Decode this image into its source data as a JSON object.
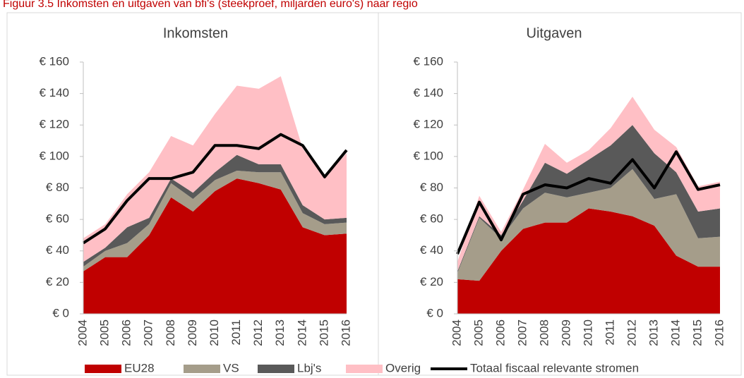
{
  "figure_title": "Figuur 3.5     Inkomsten en uitgaven van bfi's (steekproef, miljarden euro's) naar regio",
  "chart_data": [
    {
      "type": "area",
      "stacked": true,
      "title": "Inkomsten",
      "categories": [
        "2004",
        "2005",
        "2006",
        "2007",
        "2008",
        "2009",
        "2010",
        "2011",
        "2012",
        "2013",
        "2014",
        "2015",
        "2016"
      ],
      "ylim": [
        0,
        160
      ],
      "yticks": [
        {
          "value": 0,
          "label": "€ 0"
        },
        {
          "value": 20,
          "label": "€ 20"
        },
        {
          "value": 40,
          "label": "€ 40"
        },
        {
          "value": 60,
          "label": "€ 60"
        },
        {
          "value": 80,
          "label": "€ 80"
        },
        {
          "value": 100,
          "label": "€ 100"
        },
        {
          "value": 120,
          "label": "€ 120"
        },
        {
          "value": 140,
          "label": "€ 140"
        },
        {
          "value": 160,
          "label": "€ 160"
        }
      ],
      "series": [
        {
          "name": "EU28",
          "color": "#c00000",
          "values": [
            27,
            36,
            36,
            50,
            74,
            65,
            78,
            86,
            83,
            79,
            55,
            50,
            51
          ]
        },
        {
          "name": "VS",
          "color": "#a59d8a",
          "values": [
            3,
            4,
            9,
            7,
            9,
            8,
            7,
            5,
            7,
            11,
            9,
            7,
            7
          ]
        },
        {
          "name": "Lbj's",
          "color": "#595959",
          "values": [
            3,
            2,
            10,
            4,
            3,
            4,
            5,
            10,
            5,
            5,
            5,
            3,
            3
          ]
        },
        {
          "name": "Overig",
          "color": "#ffbfc5",
          "values": [
            15,
            15,
            21,
            29,
            27,
            30,
            37,
            44,
            48,
            56,
            36,
            27,
            41
          ]
        },
        {
          "name": "Totaal fiscaal relevante stromen",
          "type": "line",
          "color": "#000000",
          "values": [
            45,
            54,
            72,
            86,
            86,
            90,
            107,
            107,
            105,
            114,
            107,
            87,
            104
          ]
        }
      ]
    },
    {
      "type": "area",
      "stacked": true,
      "title": "Uitgaven",
      "categories": [
        "2004",
        "2005",
        "2006",
        "2007",
        "2008",
        "2009",
        "2010",
        "2011",
        "2012",
        "2013",
        "2014",
        "2015",
        "2016"
      ],
      "ylim": [
        0,
        160
      ],
      "yticks": [
        {
          "value": 0,
          "label": "€ 0"
        },
        {
          "value": 20,
          "label": "€ 20"
        },
        {
          "value": 40,
          "label": "€ 40"
        },
        {
          "value": 60,
          "label": "€ 60"
        },
        {
          "value": 80,
          "label": "€ 80"
        },
        {
          "value": 100,
          "label": "€ 100"
        },
        {
          "value": 120,
          "label": "€ 120"
        },
        {
          "value": 140,
          "label": "€ 140"
        },
        {
          "value": 160,
          "label": "€ 160"
        }
      ],
      "series": [
        {
          "name": "EU28",
          "color": "#c00000",
          "values": [
            22,
            21,
            40,
            54,
            58,
            58,
            67,
            65,
            62,
            56,
            37,
            30,
            30
          ]
        },
        {
          "name": "VS",
          "color": "#a59d8a",
          "values": [
            4,
            40,
            8,
            13,
            19,
            16,
            10,
            15,
            30,
            17,
            39,
            18,
            19
          ]
        },
        {
          "name": "Lbj's",
          "color": "#595959",
          "values": [
            1,
            1,
            2,
            5,
            19,
            15,
            21,
            27,
            28,
            29,
            14,
            17,
            18
          ]
        },
        {
          "name": "Overig",
          "color": "#ffbfc5",
          "values": [
            6,
            13,
            2,
            7,
            12,
            7,
            6,
            11,
            18,
            15,
            16,
            16,
            17
          ]
        },
        {
          "name": "Totaal fiscaal relevante stromen",
          "type": "line",
          "color": "#000000",
          "values": [
            38,
            71,
            47,
            76,
            82,
            80,
            86,
            83,
            98,
            80,
            103,
            79,
            82
          ]
        }
      ]
    }
  ]
}
